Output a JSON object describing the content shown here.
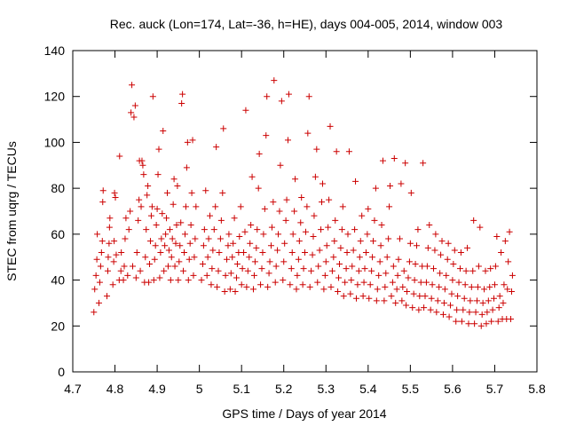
{
  "chart_data": {
    "type": "scatter",
    "title": "Rec. auck (Lon=174, Lat=-36, h=HE), days 004-005, 2014, window 003",
    "xlabel": "GPS time / Days of year 2014",
    "ylabel": "STEC from uqrg / TECUs",
    "xlim": [
      4.7,
      5.8
    ],
    "ylim": [
      0,
      140
    ],
    "xticks": [
      "4.7",
      "4.8",
      "4.9",
      "5",
      "5.1",
      "5.2",
      "5.3",
      "5.4",
      "5.5",
      "5.6",
      "5.7",
      "5.8"
    ],
    "yticks": [
      "0",
      "20",
      "40",
      "60",
      "80",
      "100",
      "120",
      "140"
    ],
    "grid": false,
    "marker": "plus",
    "color": "#cc0000",
    "points": [
      [
        4.75,
        26
      ],
      [
        4.752,
        36
      ],
      [
        4.755,
        42
      ],
      [
        4.757,
        49
      ],
      [
        4.758,
        60
      ],
      [
        4.762,
        30
      ],
      [
        4.764,
        39
      ],
      [
        4.766,
        46
      ],
      [
        4.768,
        52
      ],
      [
        4.77,
        57
      ],
      [
        4.771,
        74
      ],
      [
        4.772,
        79
      ],
      [
        4.781,
        33
      ],
      [
        4.783,
        44
      ],
      [
        4.784,
        50
      ],
      [
        4.786,
        56
      ],
      [
        4.787,
        63
      ],
      [
        4.788,
        67
      ],
      [
        4.795,
        38
      ],
      [
        4.797,
        48
      ],
      [
        4.798,
        57
      ],
      [
        4.799,
        78
      ],
      [
        4.801,
        76
      ],
      [
        4.803,
        51
      ],
      [
        4.81,
        40
      ],
      [
        4.811,
        94
      ],
      [
        4.814,
        44
      ],
      [
        4.815,
        52
      ],
      [
        4.82,
        40
      ],
      [
        4.822,
        46
      ],
      [
        4.824,
        58
      ],
      [
        4.826,
        67
      ],
      [
        4.83,
        42
      ],
      [
        4.833,
        62
      ],
      [
        4.836,
        70
      ],
      [
        4.838,
        113
      ],
      [
        4.84,
        125
      ],
      [
        4.842,
        46
      ],
      [
        4.845,
        111
      ],
      [
        4.848,
        116
      ],
      [
        4.85,
        41
      ],
      [
        4.852,
        52
      ],
      [
        4.855,
        66
      ],
      [
        4.857,
        75
      ],
      [
        4.858,
        92
      ],
      [
        4.86,
        44
      ],
      [
        4.862,
        72
      ],
      [
        4.864,
        92
      ],
      [
        4.866,
        90
      ],
      [
        4.868,
        86
      ],
      [
        4.87,
        39
      ],
      [
        4.872,
        50
      ],
      [
        4.874,
        62
      ],
      [
        4.876,
        77
      ],
      [
        4.878,
        81
      ],
      [
        4.88,
        39
      ],
      [
        4.882,
        47
      ],
      [
        4.884,
        57
      ],
      [
        4.886,
        68
      ],
      [
        4.888,
        72
      ],
      [
        4.89,
        120
      ],
      [
        4.892,
        40
      ],
      [
        4.894,
        49
      ],
      [
        4.896,
        55
      ],
      [
        4.898,
        64
      ],
      [
        4.9,
        71
      ],
      [
        4.902,
        86
      ],
      [
        4.904,
        97
      ],
      [
        4.906,
        41
      ],
      [
        4.908,
        52
      ],
      [
        4.91,
        58
      ],
      [
        4.912,
        69
      ],
      [
        4.914,
        105
      ],
      [
        4.916,
        44
      ],
      [
        4.918,
        55
      ],
      [
        4.92,
        60
      ],
      [
        4.922,
        67
      ],
      [
        4.924,
        78
      ],
      [
        4.926,
        46
      ],
      [
        4.928,
        53
      ],
      [
        4.93,
        62
      ],
      [
        4.932,
        40
      ],
      [
        4.934,
        50
      ],
      [
        4.936,
        58
      ],
      [
        4.938,
        73
      ],
      [
        4.94,
        84
      ],
      [
        4.942,
        46
      ],
      [
        4.944,
        56
      ],
      [
        4.946,
        64
      ],
      [
        4.948,
        81
      ],
      [
        4.95,
        40
      ],
      [
        4.952,
        48
      ],
      [
        4.954,
        55
      ],
      [
        4.956,
        65
      ],
      [
        4.958,
        117
      ],
      [
        4.96,
        121
      ],
      [
        4.962,
        44
      ],
      [
        4.964,
        52
      ],
      [
        4.966,
        60
      ],
      [
        4.968,
        72
      ],
      [
        4.97,
        89
      ],
      [
        4.972,
        100
      ],
      [
        4.974,
        40
      ],
      [
        4.976,
        49
      ],
      [
        4.978,
        56
      ],
      [
        4.98,
        64
      ],
      [
        4.982,
        78
      ],
      [
        4.984,
        101
      ],
      [
        4.986,
        42
      ],
      [
        4.988,
        50
      ],
      [
        4.99,
        58
      ],
      [
        4.992,
        72
      ],
      [
        5.005,
        40
      ],
      [
        5.008,
        47
      ],
      [
        5.01,
        55
      ],
      [
        5.012,
        62
      ],
      [
        5.015,
        79
      ],
      [
        5.018,
        42
      ],
      [
        5.02,
        50
      ],
      [
        5.022,
        58
      ],
      [
        5.025,
        68
      ],
      [
        5.028,
        38
      ],
      [
        5.03,
        45
      ],
      [
        5.032,
        53
      ],
      [
        5.035,
        62
      ],
      [
        5.038,
        72
      ],
      [
        5.04,
        98
      ],
      [
        5.042,
        37
      ],
      [
        5.045,
        44
      ],
      [
        5.047,
        52
      ],
      [
        5.05,
        58
      ],
      [
        5.052,
        66
      ],
      [
        5.055,
        78
      ],
      [
        5.057,
        106
      ],
      [
        5.06,
        35
      ],
      [
        5.062,
        42
      ],
      [
        5.065,
        49
      ],
      [
        5.068,
        55
      ],
      [
        5.07,
        60
      ],
      [
        5.073,
        36
      ],
      [
        5.075,
        43
      ],
      [
        5.078,
        50
      ],
      [
        5.08,
        56
      ],
      [
        5.083,
        67
      ],
      [
        5.085,
        35
      ],
      [
        5.088,
        41
      ],
      [
        5.09,
        47
      ],
      [
        5.093,
        52
      ],
      [
        5.095,
        59
      ],
      [
        5.098,
        72
      ],
      [
        5.1,
        38
      ],
      [
        5.102,
        45
      ],
      [
        5.105,
        52
      ],
      [
        5.108,
        61
      ],
      [
        5.11,
        114
      ],
      [
        5.112,
        37
      ],
      [
        5.115,
        44
      ],
      [
        5.118,
        50
      ],
      [
        5.12,
        56
      ],
      [
        5.122,
        64
      ],
      [
        5.125,
        85
      ],
      [
        5.128,
        36
      ],
      [
        5.13,
        42
      ],
      [
        5.132,
        48
      ],
      [
        5.135,
        54
      ],
      [
        5.137,
        62
      ],
      [
        5.14,
        80
      ],
      [
        5.142,
        95
      ],
      [
        5.145,
        38
      ],
      [
        5.148,
        45
      ],
      [
        5.15,
        52
      ],
      [
        5.152,
        60
      ],
      [
        5.155,
        71
      ],
      [
        5.158,
        103
      ],
      [
        5.16,
        120
      ],
      [
        5.162,
        37
      ],
      [
        5.165,
        43
      ],
      [
        5.167,
        48
      ],
      [
        5.17,
        55
      ],
      [
        5.172,
        63
      ],
      [
        5.175,
        74
      ],
      [
        5.177,
        127
      ],
      [
        5.18,
        39
      ],
      [
        5.182,
        46
      ],
      [
        5.185,
        53
      ],
      [
        5.187,
        60
      ],
      [
        5.19,
        70
      ],
      [
        5.192,
        90
      ],
      [
        5.195,
        118
      ],
      [
        5.198,
        40
      ],
      [
        5.2,
        48
      ],
      [
        5.202,
        56
      ],
      [
        5.205,
        66
      ],
      [
        5.207,
        75
      ],
      [
        5.21,
        101
      ],
      [
        5.212,
        121
      ],
      [
        5.215,
        38
      ],
      [
        5.218,
        45
      ],
      [
        5.22,
        52
      ],
      [
        5.222,
        60
      ],
      [
        5.225,
        70
      ],
      [
        5.227,
        84
      ],
      [
        5.23,
        36
      ],
      [
        5.232,
        42
      ],
      [
        5.235,
        49
      ],
      [
        5.237,
        57
      ],
      [
        5.24,
        65
      ],
      [
        5.242,
        76
      ],
      [
        5.245,
        38
      ],
      [
        5.247,
        45
      ],
      [
        5.25,
        52
      ],
      [
        5.252,
        61
      ],
      [
        5.255,
        72
      ],
      [
        5.257,
        104
      ],
      [
        5.26,
        120
      ],
      [
        5.262,
        37
      ],
      [
        5.265,
        44
      ],
      [
        5.268,
        51
      ],
      [
        5.27,
        59
      ],
      [
        5.272,
        68
      ],
      [
        5.275,
        85
      ],
      [
        5.278,
        97
      ],
      [
        5.28,
        39
      ],
      [
        5.282,
        46
      ],
      [
        5.285,
        53
      ],
      [
        5.288,
        62
      ],
      [
        5.29,
        74
      ],
      [
        5.292,
        82
      ],
      [
        5.295,
        36
      ],
      [
        5.298,
        42
      ],
      [
        5.3,
        48
      ],
      [
        5.302,
        55
      ],
      [
        5.305,
        63
      ],
      [
        5.307,
        75
      ],
      [
        5.31,
        107
      ],
      [
        5.312,
        37
      ],
      [
        5.315,
        44
      ],
      [
        5.318,
        50
      ],
      [
        5.32,
        57
      ],
      [
        5.322,
        66
      ],
      [
        5.325,
        96
      ],
      [
        5.328,
        35
      ],
      [
        5.33,
        41
      ],
      [
        5.332,
        47
      ],
      [
        5.335,
        54
      ],
      [
        5.338,
        62
      ],
      [
        5.34,
        72
      ],
      [
        5.342,
        33
      ],
      [
        5.345,
        39
      ],
      [
        5.348,
        45
      ],
      [
        5.35,
        52
      ],
      [
        5.352,
        60
      ],
      [
        5.355,
        96
      ],
      [
        5.358,
        34
      ],
      [
        5.36,
        40
      ],
      [
        5.362,
        46
      ],
      [
        5.365,
        53
      ],
      [
        5.368,
        62
      ],
      [
        5.37,
        83
      ],
      [
        5.372,
        32
      ],
      [
        5.375,
        38
      ],
      [
        5.378,
        44
      ],
      [
        5.38,
        50
      ],
      [
        5.382,
        57
      ],
      [
        5.385,
        68
      ],
      [
        5.388,
        33
      ],
      [
        5.39,
        39
      ],
      [
        5.392,
        45
      ],
      [
        5.395,
        52
      ],
      [
        5.398,
        60
      ],
      [
        5.4,
        71
      ],
      [
        5.402,
        32
      ],
      [
        5.405,
        38
      ],
      [
        5.408,
        44
      ],
      [
        5.41,
        50
      ],
      [
        5.412,
        57
      ],
      [
        5.415,
        66
      ],
      [
        5.418,
        80
      ],
      [
        5.42,
        31
      ],
      [
        5.422,
        36
      ],
      [
        5.425,
        42
      ],
      [
        5.428,
        48
      ],
      [
        5.43,
        55
      ],
      [
        5.432,
        64
      ],
      [
        5.435,
        92
      ],
      [
        5.438,
        31
      ],
      [
        5.44,
        37
      ],
      [
        5.442,
        43
      ],
      [
        5.445,
        50
      ],
      [
        5.448,
        58
      ],
      [
        5.45,
        72
      ],
      [
        5.452,
        81
      ],
      [
        5.455,
        33
      ],
      [
        5.458,
        39
      ],
      [
        5.46,
        46
      ],
      [
        5.462,
        93
      ],
      [
        5.465,
        30
      ],
      [
        5.468,
        36
      ],
      [
        5.47,
        42
      ],
      [
        5.472,
        49
      ],
      [
        5.475,
        58
      ],
      [
        5.478,
        82
      ],
      [
        5.48,
        31
      ],
      [
        5.482,
        37
      ],
      [
        5.485,
        44
      ],
      [
        5.488,
        91
      ],
      [
        5.49,
        29
      ],
      [
        5.492,
        35
      ],
      [
        5.495,
        41
      ],
      [
        5.498,
        48
      ],
      [
        5.5,
        56
      ],
      [
        5.502,
        78
      ],
      [
        5.505,
        28
      ],
      [
        5.508,
        34
      ],
      [
        5.51,
        40
      ],
      [
        5.512,
        47
      ],
      [
        5.515,
        55
      ],
      [
        5.518,
        62
      ],
      [
        5.52,
        27
      ],
      [
        5.522,
        33
      ],
      [
        5.525,
        39
      ],
      [
        5.528,
        46
      ],
      [
        5.53,
        91
      ],
      [
        5.532,
        28
      ],
      [
        5.535,
        33
      ],
      [
        5.538,
        39
      ],
      [
        5.54,
        46
      ],
      [
        5.542,
        54
      ],
      [
        5.545,
        64
      ],
      [
        5.548,
        27
      ],
      [
        5.55,
        32
      ],
      [
        5.552,
        38
      ],
      [
        5.555,
        45
      ],
      [
        5.558,
        53
      ],
      [
        5.56,
        60
      ],
      [
        5.562,
        26
      ],
      [
        5.565,
        31
      ],
      [
        5.568,
        37
      ],
      [
        5.57,
        43
      ],
      [
        5.572,
        51
      ],
      [
        5.575,
        57
      ],
      [
        5.578,
        25
      ],
      [
        5.58,
        30
      ],
      [
        5.582,
        36
      ],
      [
        5.585,
        42
      ],
      [
        5.588,
        49
      ],
      [
        5.59,
        56
      ],
      [
        5.592,
        24
      ],
      [
        5.595,
        29
      ],
      [
        5.598,
        34
      ],
      [
        5.6,
        40
      ],
      [
        5.602,
        47
      ],
      [
        5.605,
        53
      ],
      [
        5.608,
        22
      ],
      [
        5.61,
        27
      ],
      [
        5.612,
        33
      ],
      [
        5.615,
        39
      ],
      [
        5.618,
        45
      ],
      [
        5.62,
        52
      ],
      [
        5.622,
        22
      ],
      [
        5.625,
        27
      ],
      [
        5.628,
        32
      ],
      [
        5.63,
        38
      ],
      [
        5.632,
        44
      ],
      [
        5.635,
        54
      ],
      [
        5.638,
        21
      ],
      [
        5.64,
        26
      ],
      [
        5.642,
        31
      ],
      [
        5.645,
        37
      ],
      [
        5.648,
        44
      ],
      [
        5.65,
        66
      ],
      [
        5.652,
        21
      ],
      [
        5.655,
        26
      ],
      [
        5.658,
        31
      ],
      [
        5.66,
        37
      ],
      [
        5.662,
        46
      ],
      [
        5.665,
        63
      ],
      [
        5.668,
        20
      ],
      [
        5.67,
        25
      ],
      [
        5.672,
        30
      ],
      [
        5.675,
        36
      ],
      [
        5.678,
        44
      ],
      [
        5.68,
        21
      ],
      [
        5.682,
        26
      ],
      [
        5.685,
        31
      ],
      [
        5.688,
        37
      ],
      [
        5.69,
        45
      ],
      [
        5.692,
        22
      ],
      [
        5.695,
        27
      ],
      [
        5.698,
        32
      ],
      [
        5.7,
        38
      ],
      [
        5.702,
        46
      ],
      [
        5.705,
        59
      ],
      [
        5.708,
        22
      ],
      [
        5.71,
        28
      ],
      [
        5.712,
        33
      ],
      [
        5.715,
        52
      ],
      [
        5.718,
        23
      ],
      [
        5.72,
        30
      ],
      [
        5.722,
        38
      ],
      [
        5.725,
        57
      ],
      [
        5.728,
        23
      ],
      [
        5.73,
        36
      ],
      [
        5.732,
        48
      ],
      [
        5.735,
        61
      ],
      [
        5.738,
        23
      ],
      [
        5.74,
        35
      ],
      [
        5.742,
        42
      ]
    ]
  }
}
